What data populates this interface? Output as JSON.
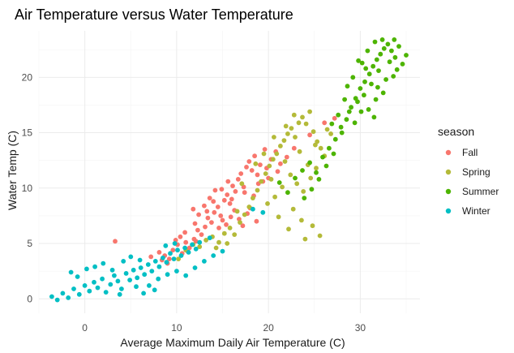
{
  "chart_data": {
    "type": "scatter",
    "title": "Air Temperature versus Water Temperature",
    "xlabel": "Average Maximum Daily Air Temperature (C)",
    "ylabel": "Water Temp (C)",
    "xlim": [
      -5,
      36.5
    ],
    "ylim": [
      -1.3,
      24.2
    ],
    "x_ticks": [
      0,
      10,
      20,
      30
    ],
    "y_ticks": [
      0,
      5,
      10,
      15,
      20
    ],
    "grid": true,
    "legend": {
      "title": "season",
      "position": "right"
    },
    "series": [
      {
        "name": "Fall",
        "color": "#F8766D",
        "points": [
          [
            3.3,
            5.2
          ],
          [
            7.2,
            3.8
          ],
          [
            8.1,
            4.2
          ],
          [
            8.7,
            3.9
          ],
          [
            9.2,
            3.6
          ],
          [
            9.6,
            4.4
          ],
          [
            10.1,
            4.9
          ],
          [
            10.6,
            4.1
          ],
          [
            11.0,
            5.1
          ],
          [
            11.4,
            4.6
          ],
          [
            11.9,
            5.4
          ],
          [
            12.3,
            6.2
          ],
          [
            12.7,
            5.8
          ],
          [
            13.1,
            6.5
          ],
          [
            13.4,
            7.3
          ],
          [
            13.8,
            6.9
          ],
          [
            14.1,
            7.8
          ],
          [
            14.5,
            8.3
          ],
          [
            14.8,
            7.5
          ],
          [
            15.2,
            8.9
          ],
          [
            15.5,
            9.4
          ],
          [
            15.8,
            8.6
          ],
          [
            16.1,
            10.2
          ],
          [
            16.4,
            9.7
          ],
          [
            16.7,
            10.8
          ],
          [
            17.0,
            11.3
          ],
          [
            17.3,
            10.1
          ],
          [
            17.6,
            11.9
          ],
          [
            17.9,
            12.4
          ],
          [
            18.2,
            11.6
          ],
          [
            18.5,
            12.9
          ],
          [
            18.8,
            11.2
          ],
          [
            19.1,
            12.1
          ],
          [
            19.4,
            10.6
          ],
          [
            19.8,
            11.8
          ],
          [
            20.3,
            12.6
          ],
          [
            20.8,
            13.3
          ],
          [
            21.3,
            12.2
          ],
          [
            22.0,
            12.8
          ],
          [
            22.8,
            13.6
          ],
          [
            11.8,
            8.1
          ],
          [
            12.4,
            7.6
          ],
          [
            13.0,
            8.4
          ],
          [
            13.6,
            9.1
          ],
          [
            14.2,
            9.8
          ],
          [
            14.6,
            6.4
          ],
          [
            15.0,
            7.1
          ],
          [
            15.4,
            6.7
          ],
          [
            15.9,
            7.4
          ],
          [
            16.3,
            8.0
          ],
          [
            16.8,
            7.2
          ],
          [
            17.2,
            6.6
          ],
          [
            17.7,
            7.7
          ],
          [
            18.0,
            8.2
          ],
          [
            18.4,
            9.3
          ],
          [
            18.7,
            7.0
          ],
          [
            10.4,
            5.6
          ],
          [
            10.9,
            6.0
          ],
          [
            9.9,
            5.3
          ],
          [
            12.0,
            6.8
          ],
          [
            14.0,
            8.8
          ],
          [
            16.0,
            9.0
          ],
          [
            17.4,
            9.6
          ],
          [
            18.9,
            10.4
          ],
          [
            20.0,
            10.9
          ],
          [
            21.0,
            11.5
          ],
          [
            15.6,
            10.6
          ],
          [
            14.9,
            9.9
          ],
          [
            13.3,
            7.9
          ],
          [
            12.1,
            5.2
          ],
          [
            11.2,
            4.3
          ],
          [
            9.0,
            3.2
          ],
          [
            8.4,
            3.5
          ],
          [
            19.6,
            13.5
          ],
          [
            24.5,
            14.8
          ],
          [
            27.2,
            16.3
          ],
          [
            26.1,
            15.9
          ]
        ]
      },
      {
        "name": "Spring",
        "color": "#B4BA39",
        "points": [
          [
            10.2,
            3.6
          ],
          [
            11.0,
            4.4
          ],
          [
            11.8,
            4.9
          ],
          [
            12.5,
            4.7
          ],
          [
            13.2,
            5.3
          ],
          [
            13.9,
            5.6
          ],
          [
            14.6,
            5.1
          ],
          [
            15.2,
            5.9
          ],
          [
            15.8,
            6.4
          ],
          [
            16.3,
            5.8
          ],
          [
            16.9,
            6.9
          ],
          [
            17.4,
            7.6
          ],
          [
            17.9,
            8.3
          ],
          [
            18.3,
            9.1
          ],
          [
            18.8,
            9.8
          ],
          [
            19.2,
            10.6
          ],
          [
            19.7,
            11.3
          ],
          [
            20.1,
            12.0
          ],
          [
            20.5,
            12.6
          ],
          [
            20.9,
            13.1
          ],
          [
            21.3,
            13.8
          ],
          [
            21.7,
            14.3
          ],
          [
            22.1,
            14.9
          ],
          [
            22.5,
            15.4
          ],
          [
            22.9,
            14.6
          ],
          [
            23.3,
            15.9
          ],
          [
            23.7,
            16.4
          ],
          [
            24.1,
            15.8
          ],
          [
            24.5,
            16.9
          ],
          [
            24.9,
            15.1
          ],
          [
            25.3,
            14.2
          ],
          [
            25.7,
            13.6
          ],
          [
            26.1,
            12.9
          ],
          [
            22.4,
            11.2
          ],
          [
            23.1,
            10.4
          ],
          [
            23.8,
            9.7
          ],
          [
            24.6,
            10.9
          ],
          [
            25.2,
            11.8
          ],
          [
            21.5,
            10.1
          ],
          [
            20.7,
            9.2
          ],
          [
            19.9,
            8.6
          ],
          [
            21.1,
            7.4
          ],
          [
            22.2,
            6.3
          ],
          [
            23.6,
            7.1
          ],
          [
            24.8,
            6.6
          ],
          [
            25.6,
            5.7
          ],
          [
            24.0,
            5.4
          ],
          [
            22.7,
            8.1
          ],
          [
            20.3,
            10.8
          ],
          [
            21.8,
            12.4
          ],
          [
            23.4,
            13.3
          ],
          [
            24.3,
            12.1
          ],
          [
            25.1,
            13.9
          ],
          [
            26.4,
            15.3
          ],
          [
            17.1,
            10.4
          ],
          [
            18.6,
            12.2
          ],
          [
            19.5,
            13.1
          ],
          [
            20.6,
            14.6
          ],
          [
            21.9,
            15.6
          ],
          [
            22.8,
            16.6
          ],
          [
            16.6,
            7.9
          ],
          [
            15.5,
            5.0
          ],
          [
            14.3,
            4.6
          ],
          [
            26.8,
            14.9
          ]
        ]
      },
      {
        "name": "Summer",
        "color": "#4DB400",
        "points": [
          [
            21.2,
            10.5
          ],
          [
            22.1,
            9.6
          ],
          [
            22.9,
            10.9
          ],
          [
            23.7,
            11.6
          ],
          [
            24.5,
            12.3
          ],
          [
            25.2,
            11.4
          ],
          [
            25.9,
            12.8
          ],
          [
            26.6,
            13.6
          ],
          [
            27.3,
            14.4
          ],
          [
            27.9,
            15.5
          ],
          [
            28.5,
            16.2
          ],
          [
            29.0,
            17.3
          ],
          [
            29.5,
            18.1
          ],
          [
            30.0,
            19.0
          ],
          [
            30.5,
            19.6
          ],
          [
            31.0,
            20.3
          ],
          [
            31.4,
            21.0
          ],
          [
            31.8,
            21.6
          ],
          [
            32.2,
            22.1
          ],
          [
            32.6,
            22.6
          ],
          [
            33.0,
            23.0
          ],
          [
            33.4,
            22.4
          ],
          [
            33.8,
            21.8
          ],
          [
            34.2,
            22.8
          ],
          [
            34.6,
            21.2
          ],
          [
            35.0,
            22.0
          ],
          [
            30.2,
            21.3
          ],
          [
            30.8,
            22.4
          ],
          [
            31.6,
            23.2
          ],
          [
            32.4,
            23.4
          ],
          [
            33.2,
            21.4
          ],
          [
            32.0,
            20.6
          ],
          [
            31.2,
            19.4
          ],
          [
            30.4,
            18.4
          ],
          [
            29.7,
            17.8
          ],
          [
            28.8,
            16.9
          ],
          [
            28.0,
            15.0
          ],
          [
            27.1,
            13.1
          ],
          [
            26.3,
            12.0
          ],
          [
            25.5,
            10.8
          ],
          [
            24.7,
            9.9
          ],
          [
            23.9,
            9.1
          ],
          [
            31.5,
            16.4
          ],
          [
            30.9,
            17.1
          ],
          [
            32.5,
            18.6
          ],
          [
            33.6,
            20.1
          ],
          [
            34.0,
            20.7
          ],
          [
            29.2,
            20.0
          ],
          [
            28.6,
            19.2
          ],
          [
            29.8,
            21.5
          ],
          [
            30.6,
            20.8
          ],
          [
            31.9,
            19.1
          ],
          [
            32.8,
            19.8
          ],
          [
            33.7,
            23.4
          ],
          [
            28.3,
            18.0
          ],
          [
            27.6,
            16.6
          ],
          [
            26.9,
            15.8
          ],
          [
            31.7,
            18.0
          ],
          [
            30.1,
            16.9
          ],
          [
            29.4,
            15.9
          ]
        ]
      },
      {
        "name": "Winter",
        "color": "#00BFC4",
        "points": [
          [
            -3.6,
            0.2
          ],
          [
            -3.0,
            -0.1
          ],
          [
            -2.4,
            0.5
          ],
          [
            -1.8,
            0.1
          ],
          [
            -1.2,
            0.9
          ],
          [
            -0.6,
            0.4
          ],
          [
            0.0,
            1.2
          ],
          [
            0.5,
            0.7
          ],
          [
            1.0,
            1.5
          ],
          [
            1.4,
            1.0
          ],
          [
            1.9,
            1.8
          ],
          [
            2.3,
            0.6
          ],
          [
            2.8,
            1.3
          ],
          [
            3.2,
            2.1
          ],
          [
            3.6,
            1.6
          ],
          [
            4.0,
            0.9
          ],
          [
            4.5,
            2.3
          ],
          [
            4.9,
            1.7
          ],
          [
            5.3,
            2.6
          ],
          [
            5.7,
            1.9
          ],
          [
            6.1,
            2.8
          ],
          [
            6.5,
            2.2
          ],
          [
            6.9,
            3.1
          ],
          [
            7.3,
            2.5
          ],
          [
            7.7,
            3.4
          ],
          [
            8.1,
            2.9
          ],
          [
            8.5,
            3.7
          ],
          [
            8.9,
            3.3
          ],
          [
            9.3,
            4.1
          ],
          [
            9.7,
            3.6
          ],
          [
            10.1,
            4.4
          ],
          [
            10.5,
            3.9
          ],
          [
            10.9,
            4.6
          ],
          [
            11.3,
            4.2
          ],
          [
            11.7,
            4.9
          ],
          [
            12.1,
            4.5
          ],
          [
            12.5,
            5.1
          ],
          [
            -1.5,
            2.4
          ],
          [
            -0.8,
            2.0
          ],
          [
            0.2,
            2.7
          ],
          [
            1.1,
            2.9
          ],
          [
            2.0,
            3.2
          ],
          [
            3.0,
            2.6
          ],
          [
            4.2,
            3.4
          ],
          [
            5.0,
            3.8
          ],
          [
            6.0,
            3.5
          ],
          [
            7.0,
            1.2
          ],
          [
            8.0,
            1.8
          ],
          [
            9.0,
            2.2
          ],
          [
            10.0,
            2.5
          ],
          [
            11.0,
            2.1
          ],
          [
            12.0,
            2.8
          ],
          [
            13.0,
            3.4
          ],
          [
            14.0,
            3.9
          ],
          [
            15.0,
            4.3
          ],
          [
            6.4,
            0.5
          ],
          [
            7.6,
            0.8
          ],
          [
            5.6,
            1.1
          ],
          [
            3.8,
            0.4
          ],
          [
            18.3,
            8.1
          ],
          [
            19.4,
            7.8
          ],
          [
            13.6,
            5.5
          ],
          [
            8.8,
            4.8
          ],
          [
            9.8,
            5.0
          ]
        ]
      }
    ]
  }
}
